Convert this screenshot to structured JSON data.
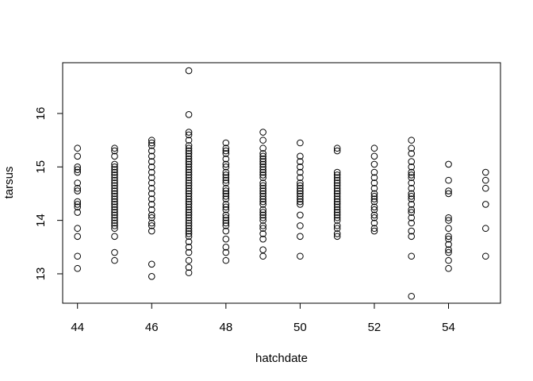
{
  "chart_data": {
    "type": "scatter",
    "title": "",
    "xlabel": "hatchdate",
    "ylabel": "tarsus",
    "xlim": [
      43.6,
      55.4
    ],
    "ylim": [
      12.45,
      16.95
    ],
    "xticks": [
      44,
      46,
      48,
      50,
      52,
      54
    ],
    "yticks": [
      13,
      14,
      15,
      16
    ],
    "xtick_labels": [
      "44",
      "46",
      "48",
      "50",
      "52",
      "54"
    ],
    "ytick_labels": [
      "13",
      "14",
      "15",
      "16"
    ],
    "grid": false,
    "legend": "none",
    "marker": "open-circle",
    "groups": [
      {
        "x": 44,
        "y": [
          13.1,
          13.33,
          13.7,
          13.85,
          14.15,
          14.25,
          14.3,
          14.35,
          14.55,
          14.6,
          14.7,
          14.9,
          14.95,
          15.0,
          15.2,
          15.35
        ]
      },
      {
        "x": 45,
        "y": [
          13.25,
          13.4,
          13.7,
          13.85,
          13.9,
          13.95,
          14.0,
          14.05,
          14.1,
          14.15,
          14.2,
          14.25,
          14.3,
          14.35,
          14.4,
          14.45,
          14.5,
          14.55,
          14.6,
          14.65,
          14.7,
          14.75,
          14.8,
          14.85,
          14.9,
          14.95,
          15.0,
          15.05,
          15.2,
          15.3,
          15.35
        ]
      },
      {
        "x": 46,
        "y": [
          12.95,
          13.18,
          13.8,
          13.9,
          13.95,
          14.05,
          14.1,
          14.2,
          14.3,
          14.4,
          14.5,
          14.6,
          14.7,
          14.8,
          14.9,
          15.0,
          15.1,
          15.2,
          15.3,
          15.4,
          15.45,
          15.5
        ]
      },
      {
        "x": 47,
        "y": [
          13.02,
          13.12,
          13.25,
          13.4,
          13.5,
          13.6,
          13.7,
          13.75,
          13.8,
          13.85,
          13.9,
          13.95,
          14.0,
          14.05,
          14.1,
          14.15,
          14.2,
          14.25,
          14.3,
          14.35,
          14.4,
          14.45,
          14.5,
          14.55,
          14.6,
          14.65,
          14.7,
          14.75,
          14.8,
          14.85,
          14.9,
          14.95,
          15.0,
          15.05,
          15.1,
          15.15,
          15.2,
          15.25,
          15.3,
          15.35,
          15.4,
          15.5,
          15.6,
          15.65,
          15.98,
          16.8
        ]
      },
      {
        "x": 48,
        "y": [
          13.25,
          13.4,
          13.5,
          13.65,
          13.8,
          13.9,
          13.95,
          14.0,
          14.05,
          14.1,
          14.2,
          14.25,
          14.3,
          14.4,
          14.45,
          14.5,
          14.55,
          14.6,
          14.7,
          14.75,
          14.8,
          14.85,
          14.9,
          15.0,
          15.05,
          15.15,
          15.25,
          15.3,
          15.35,
          15.45
        ]
      },
      {
        "x": 49,
        "y": [
          13.33,
          13.45,
          13.65,
          13.75,
          13.85,
          13.9,
          14.0,
          14.05,
          14.1,
          14.15,
          14.2,
          14.3,
          14.35,
          14.4,
          14.45,
          14.5,
          14.55,
          14.6,
          14.65,
          14.7,
          14.8,
          14.85,
          14.9,
          14.95,
          15.0,
          15.05,
          15.1,
          15.15,
          15.2,
          15.25,
          15.35,
          15.5,
          15.65
        ]
      },
      {
        "x": 50,
        "y": [
          13.33,
          13.7,
          13.9,
          14.1,
          14.3,
          14.35,
          14.4,
          14.45,
          14.5,
          14.55,
          14.6,
          14.65,
          14.7,
          14.8,
          14.9,
          15.0,
          15.1,
          15.2,
          15.45
        ]
      },
      {
        "x": 51,
        "y": [
          13.7,
          13.75,
          13.85,
          13.9,
          14.0,
          14.05,
          14.1,
          14.15,
          14.2,
          14.25,
          14.3,
          14.35,
          14.4,
          14.45,
          14.5,
          14.55,
          14.6,
          14.65,
          14.7,
          14.75,
          14.8,
          14.85,
          14.9,
          15.3,
          15.35
        ]
      },
      {
        "x": 52,
        "y": [
          13.8,
          13.85,
          13.95,
          14.05,
          14.1,
          14.2,
          14.25,
          14.35,
          14.4,
          14.45,
          14.5,
          14.6,
          14.7,
          14.8,
          14.9,
          15.05,
          15.2,
          15.35
        ]
      },
      {
        "x": 53,
        "y": [
          12.58,
          13.33,
          13.7,
          13.8,
          13.95,
          14.05,
          14.15,
          14.2,
          14.3,
          14.4,
          14.45,
          14.5,
          14.6,
          14.7,
          14.8,
          14.85,
          14.9,
          15.0,
          15.1,
          15.25,
          15.35,
          15.5
        ]
      },
      {
        "x": 54,
        "y": [
          13.1,
          13.25,
          13.4,
          13.45,
          13.55,
          13.65,
          13.7,
          13.85,
          14.0,
          14.05,
          14.5,
          14.55,
          14.75,
          15.05
        ]
      },
      {
        "x": 55,
        "y": [
          13.33,
          13.85,
          14.3,
          14.6,
          14.75,
          14.9
        ]
      }
    ]
  }
}
